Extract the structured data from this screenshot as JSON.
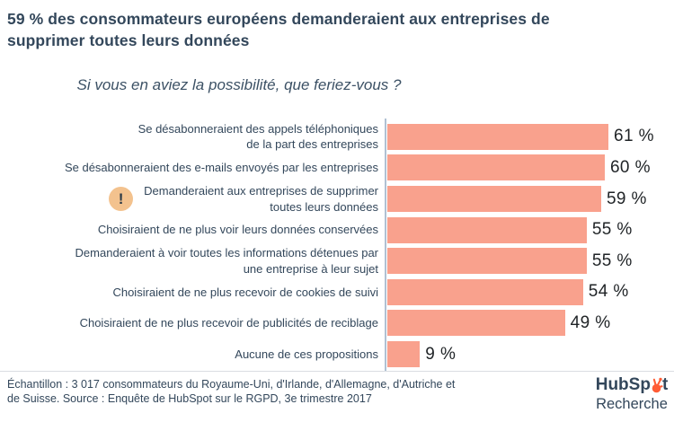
{
  "header": {
    "title_lines": [
      "59 % des consommateurs européens demanderaient aux entreprises de",
      "supprimer toutes leurs données"
    ],
    "subtitle": "Si vous en aviez la possibilité, que feriez-vous ?"
  },
  "chart_data": {
    "type": "bar",
    "orientation": "horizontal",
    "title": "Si vous en aviez la possibilité, que feriez-vous ?",
    "unit": "%",
    "xlim": [
      0,
      62
    ],
    "grid": false,
    "categories": [
      "Se désabonneraient des appels téléphoniques de la part des entreprises",
      "Se désabonneraient des e-mails envoyés par les entreprises",
      "Demanderaient aux entreprises de supprimer toutes leurs données",
      "Choisiraient de ne plus voir leurs données conservées",
      "Demanderaient à voir toutes les informations détenues par une entreprise à leur sujet",
      "Choisiraient de ne plus recevoir de cookies de suivi",
      "Choisiraient de ne plus recevoir de publicités de reciblage",
      "Aucune de ces propositions"
    ],
    "values": [
      61,
      60,
      59,
      55,
      55,
      54,
      49,
      9
    ],
    "rows": [
      {
        "label_lines": [
          "Se désabonneraient des appels téléphoniques",
          "de la part des entreprises"
        ],
        "value": 61,
        "value_label": "61 %"
      },
      {
        "label_lines": [
          "Se désabonneraient des e-mails envoyés par les entreprises"
        ],
        "value": 60,
        "value_label": "60 %"
      },
      {
        "label_lines": [
          "Demanderaient aux entreprises de supprimer",
          "toutes leurs données"
        ],
        "value": 59,
        "value_label": "59 %",
        "warning_icon": true
      },
      {
        "label_lines": [
          "Choisiraient de ne plus voir leurs données conservées"
        ],
        "value": 55,
        "value_label": "55 %"
      },
      {
        "label_lines": [
          "Demanderaient à voir toutes les informations détenues par",
          "une entreprise à leur sujet"
        ],
        "value": 55,
        "value_label": "55 %"
      },
      {
        "label_lines": [
          "Choisiraient de ne plus recevoir de cookies de suivi"
        ],
        "value": 54,
        "value_label": "54 %"
      },
      {
        "label_lines": [
          "Choisiraient de ne plus recevoir de publicités de reciblage"
        ],
        "value": 49,
        "value_label": "49 %"
      },
      {
        "label_lines": [
          "Aucune de ces propositions"
        ],
        "value": 9,
        "value_label": "9 %"
      }
    ],
    "warning_glyph": "!",
    "bar_color": "#f9a18d",
    "axis_color": "#b0c1d3"
  },
  "footer": {
    "source_text": "Échantillon : 3 017 consommateurs du Royaume-Uni, d'Irlande, d'Allemagne, d'Autriche et de Suisse. Source : Enquête de HubSpot sur le RGPD, 3e trimestre 2017"
  },
  "logo": {
    "brand_prefix": "HubSp",
    "brand_suffix": "t",
    "brand_full": "HubSpot",
    "tagline": "Recherche"
  },
  "colors": {
    "navy": "#33475b",
    "bar": "#f9a18d",
    "axis": "#b0c1d3",
    "warning_bg": "#f3c28e",
    "value_text": "#1f2326",
    "sprocket_orange": "#ff5c35",
    "divider": "#dadde2"
  }
}
